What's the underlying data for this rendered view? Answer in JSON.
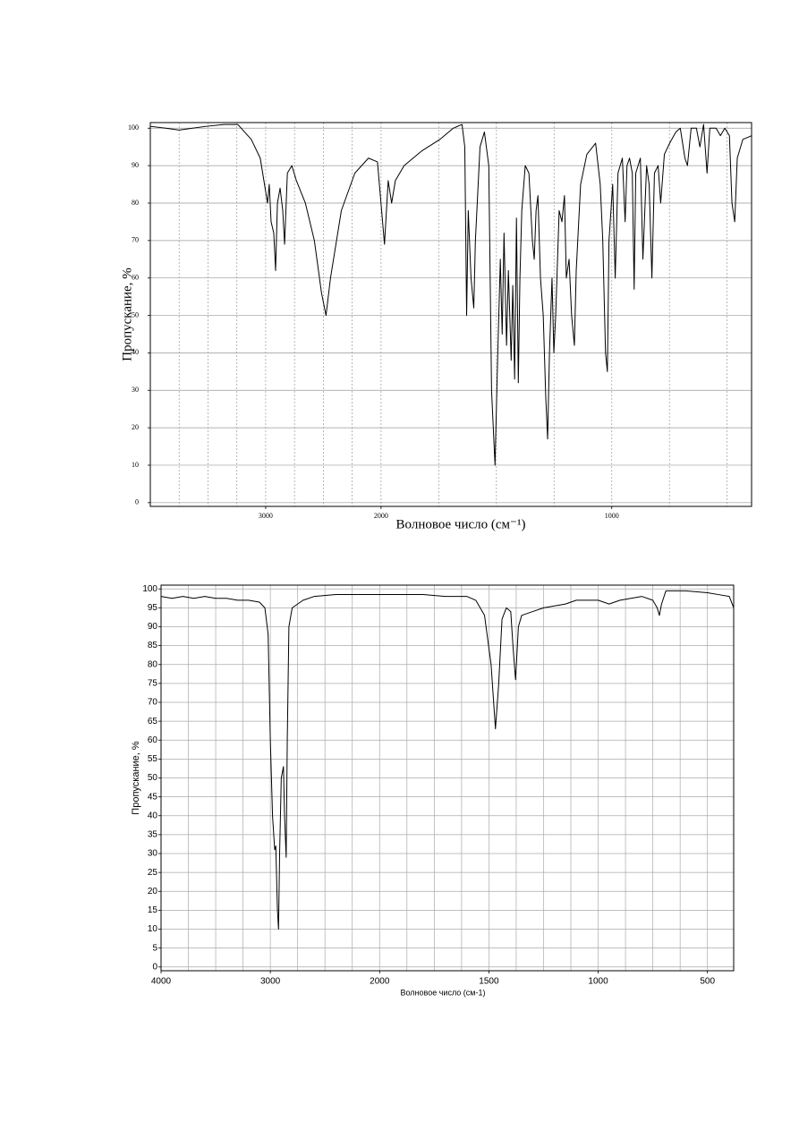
{
  "chart_data": [
    {
      "type": "line",
      "ylabel": "Пропускание, %",
      "xlabel": "Волновое число (см⁻¹)",
      "color": "#000000",
      "xlim": [
        4000,
        394
      ],
      "ylim": [
        -1,
        101.5
      ],
      "xbreak": 2000,
      "xbreak_factor": 2,
      "xticks": [
        3000,
        2000,
        1000
      ],
      "yticks": [
        0,
        10,
        20,
        30,
        40,
        50,
        60,
        70,
        80,
        90,
        100
      ],
      "xgrid": [
        3750,
        3500,
        3250,
        3000,
        2750,
        2500,
        2250,
        2000,
        1750,
        1500,
        1250,
        1000,
        750,
        500
      ],
      "grid": true,
      "grid_style": "dashed",
      "x": [
        4000,
        3867,
        3750,
        3633,
        3516,
        3359,
        3242,
        3125,
        3047,
        2984,
        2969,
        2953,
        2930,
        2914,
        2898,
        2875,
        2852,
        2836,
        2812,
        2773,
        2734,
        2656,
        2578,
        2516,
        2477,
        2438,
        2344,
        2227,
        2109,
        2031,
        1985,
        1969,
        1954,
        1938,
        1900,
        1822,
        1745,
        1687,
        1649,
        1637,
        1629,
        1622,
        1610,
        1598,
        1591,
        1571,
        1552,
        1533,
        1521,
        1506,
        1494,
        1483,
        1475,
        1467,
        1456,
        1448,
        1436,
        1429,
        1421,
        1413,
        1405,
        1398,
        1390,
        1375,
        1359,
        1344,
        1336,
        1328,
        1320,
        1309,
        1297,
        1286,
        1278,
        1270,
        1259,
        1251,
        1243,
        1228,
        1216,
        1205,
        1197,
        1185,
        1174,
        1162,
        1154,
        1135,
        1108,
        1070,
        1050,
        1039,
        1027,
        1019,
        1012,
        996,
        985,
        973,
        954,
        942,
        934,
        923,
        911,
        903,
        896,
        876,
        865,
        849,
        838,
        826,
        815,
        799,
        788,
        772,
        749,
        722,
        703,
        683,
        672,
        656,
        633,
        618,
        602,
        587,
        575,
        548,
        529,
        510,
        490,
        479,
        467,
        456,
        432,
        394
      ],
      "values": [
        100.5,
        100,
        99.5,
        100,
        100.5,
        101,
        101,
        97,
        92,
        80,
        85,
        75,
        72,
        62,
        80,
        84,
        78,
        69,
        88,
        90,
        86,
        80,
        70,
        56,
        50,
        60,
        78,
        88,
        92,
        91,
        69,
        86,
        80,
        86,
        90,
        94,
        97,
        100,
        101,
        95,
        50,
        78,
        60,
        52,
        70,
        95,
        99,
        90,
        30,
        10,
        40,
        65,
        45,
        72,
        42,
        62,
        38,
        58,
        33,
        76,
        32,
        60,
        78,
        90,
        88,
        70,
        65,
        78,
        82,
        60,
        50,
        28,
        17,
        40,
        60,
        40,
        50,
        78,
        75,
        82,
        60,
        65,
        50,
        42,
        62,
        85,
        93,
        96,
        85,
        70,
        40,
        35,
        70,
        85,
        60,
        88,
        92,
        75,
        90,
        92,
        88,
        57,
        88,
        92,
        65,
        90,
        85,
        60,
        88,
        90,
        80,
        93,
        96,
        99,
        100,
        92,
        90,
        100,
        100,
        95,
        101,
        88,
        100,
        100,
        98,
        100,
        98,
        80,
        75,
        92,
        97,
        98
      ]
    },
    {
      "type": "line",
      "ylabel": "Пропускание, %",
      "xlabel": "Волновое число (см-1)",
      "color": "#000000",
      "xlim": [
        4000,
        380
      ],
      "ylim": [
        -1,
        101
      ],
      "xbreak": 2000,
      "xbreak_factor": 2,
      "xticks": [
        4000,
        3000,
        2000,
        1500,
        1000,
        500
      ],
      "yticks": [
        0,
        5,
        10,
        15,
        20,
        25,
        30,
        35,
        40,
        45,
        50,
        55,
        60,
        65,
        70,
        75,
        80,
        85,
        90,
        95,
        100
      ],
      "xgrid": [
        3750,
        3500,
        3250,
        3000,
        2750,
        2500,
        2250,
        2000,
        1875,
        1750,
        1625,
        1500,
        1375,
        1250,
        1125,
        1000,
        875,
        750,
        625,
        500
      ],
      "grid": true,
      "grid_style": "solid",
      "x": [
        4000,
        3900,
        3800,
        3700,
        3600,
        3500,
        3400,
        3300,
        3200,
        3100,
        3050,
        3020,
        3000,
        2980,
        2960,
        2950,
        2935,
        2925,
        2915,
        2900,
        2880,
        2870,
        2855,
        2845,
        2830,
        2800,
        2750,
        2700,
        2600,
        2400,
        2200,
        2000,
        1800,
        1700,
        1600,
        1560,
        1520,
        1490,
        1470,
        1455,
        1440,
        1420,
        1400,
        1390,
        1378,
        1365,
        1350,
        1300,
        1250,
        1200,
        1150,
        1100,
        1000,
        950,
        900,
        800,
        750,
        730,
        720,
        710,
        690,
        650,
        600,
        500,
        450,
        400,
        380
      ],
      "values": [
        98,
        97.5,
        98,
        97.5,
        98,
        97.5,
        97.5,
        97,
        97,
        96.5,
        95,
        88,
        60,
        40,
        31,
        32,
        15,
        10,
        30,
        50,
        53,
        40,
        29,
        60,
        90,
        95,
        96,
        97,
        98,
        98.5,
        98.5,
        98.5,
        98.5,
        98,
        98,
        97,
        93,
        80,
        63,
        75,
        92,
        95,
        94,
        85,
        76,
        90,
        93,
        94,
        95,
        95.5,
        96,
        97,
        97,
        96,
        97,
        98,
        97,
        95,
        93,
        96,
        99.5,
        99.5,
        99.5,
        99,
        98.5,
        98,
        95
      ]
    }
  ]
}
